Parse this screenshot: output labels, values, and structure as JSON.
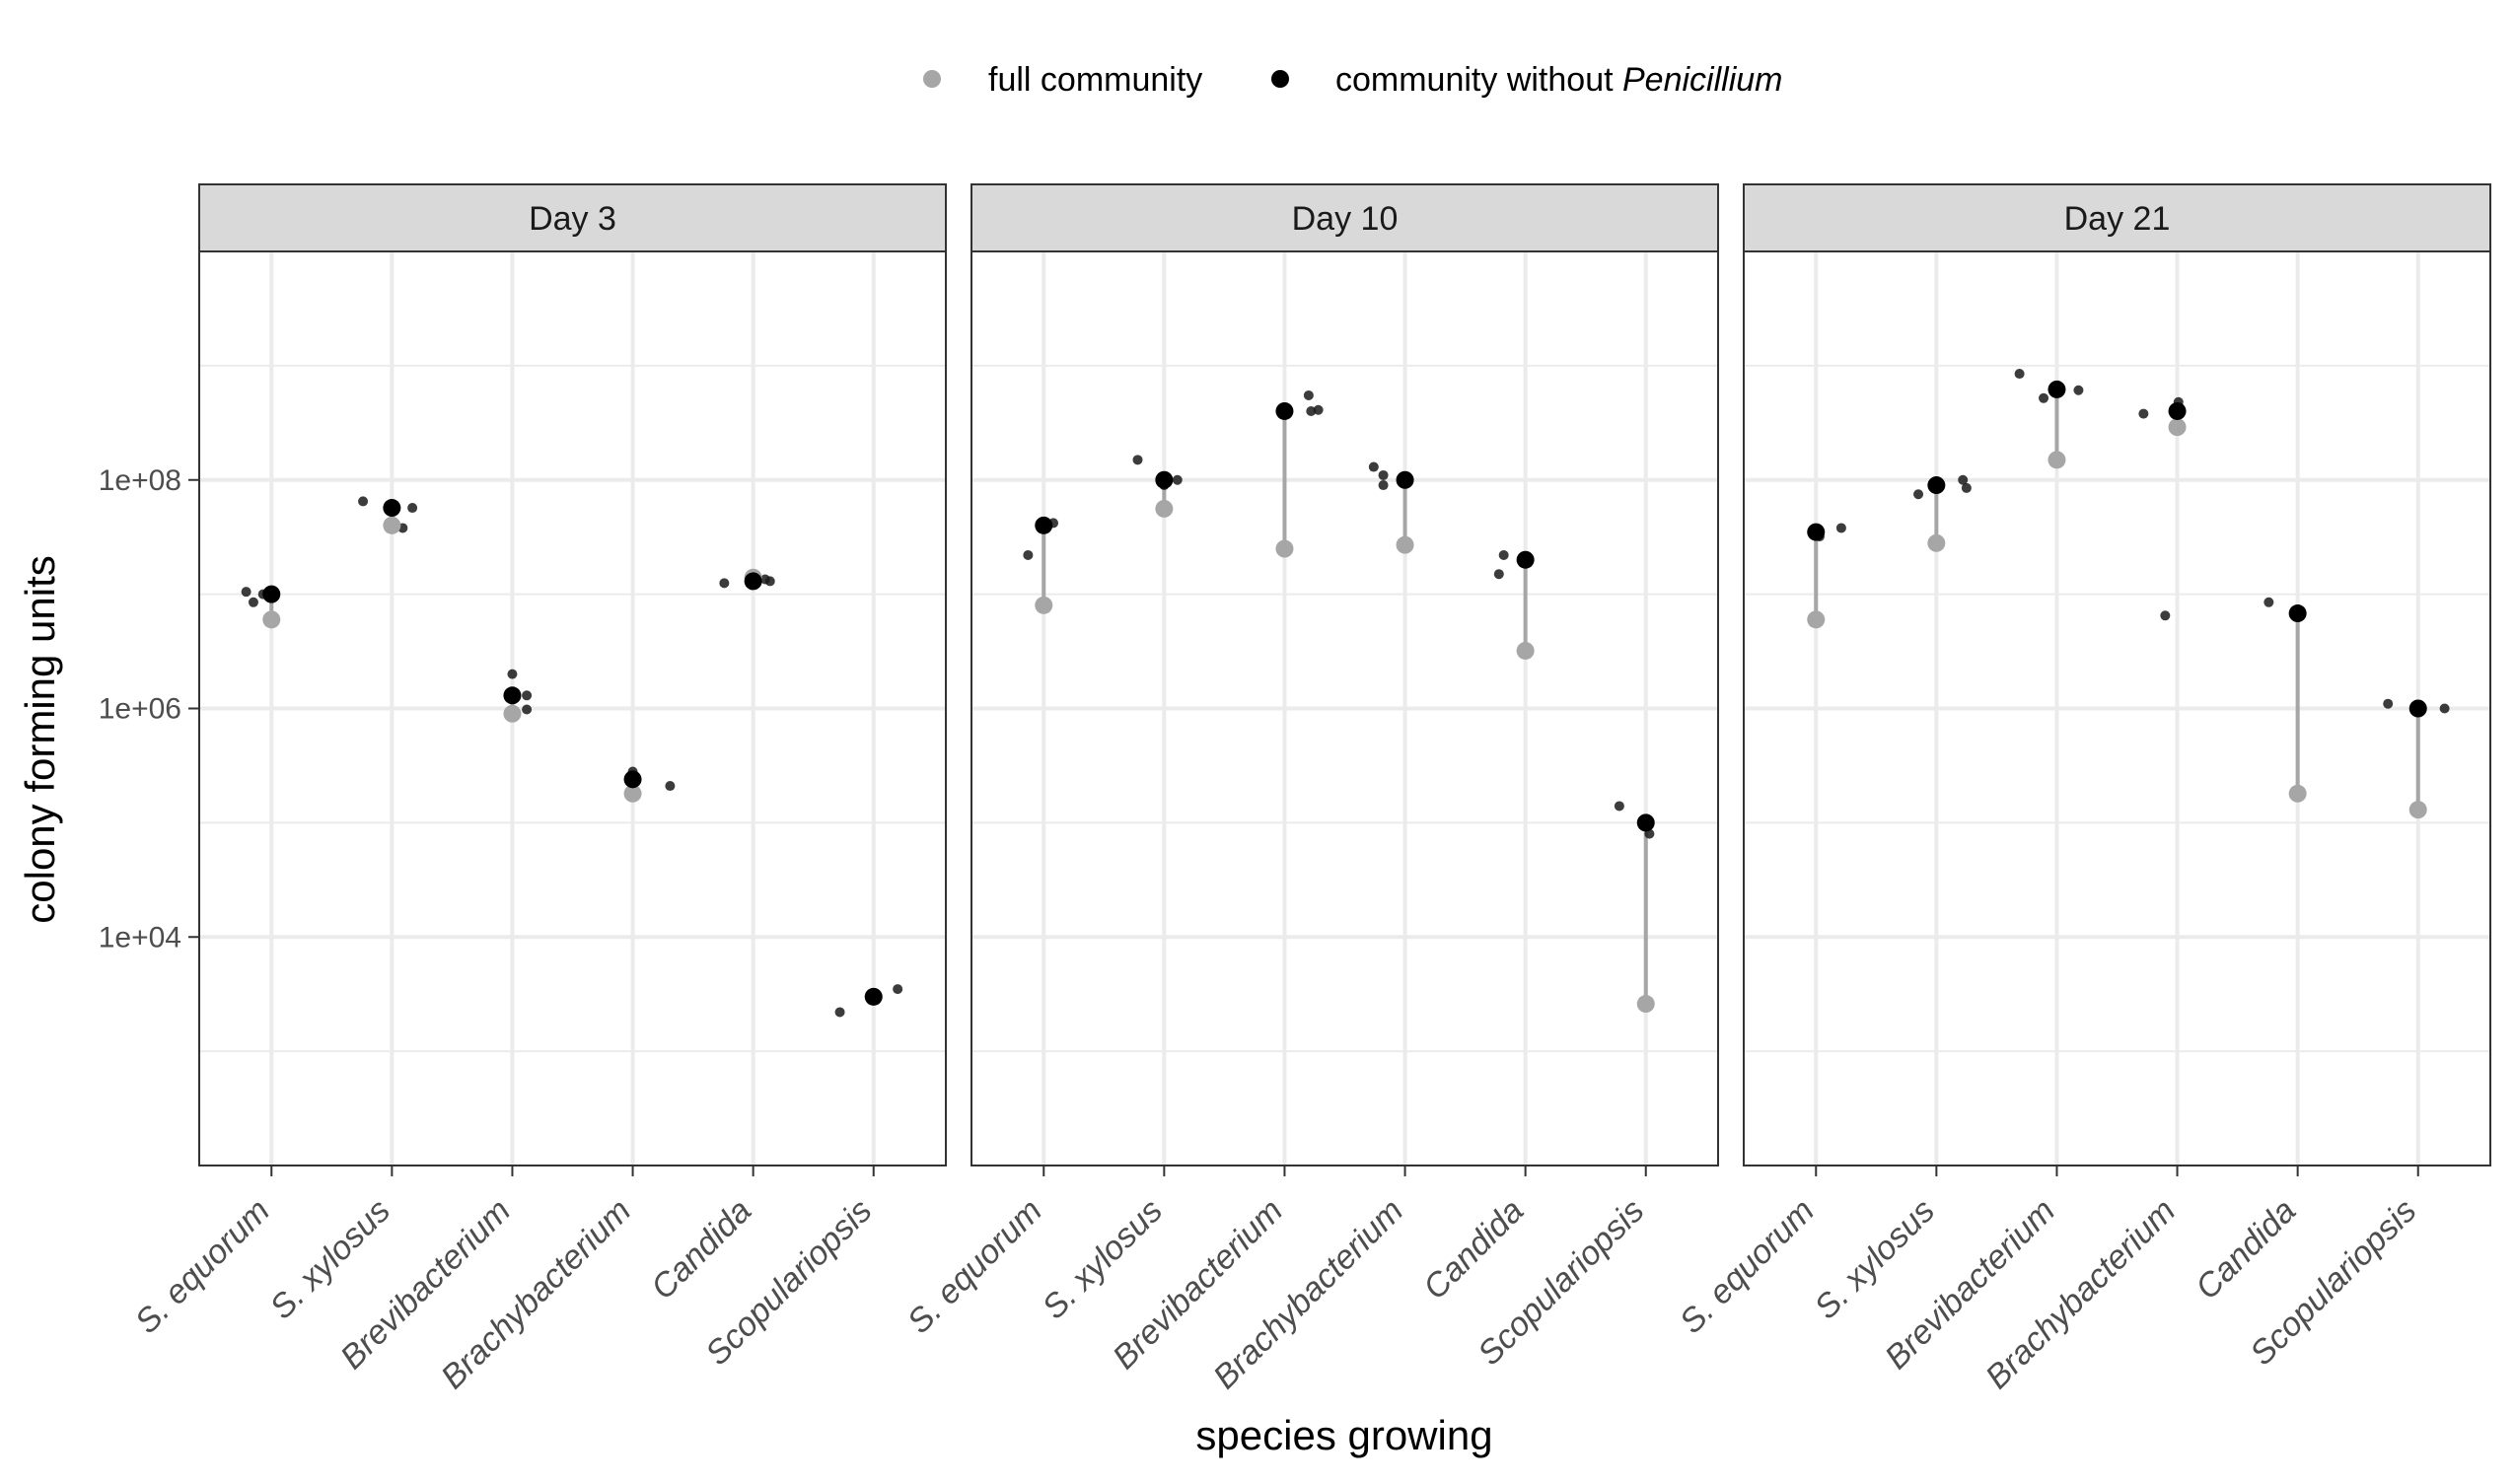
{
  "chart_data": {
    "type": "scatter",
    "xlabel": "species growing",
    "ylabel": "colony forming units",
    "y_scale": "log10",
    "y_range": [
      100.0,
      10000000000.0
    ],
    "y_ticks": [
      {
        "value": 10000,
        "label": "1e+04"
      },
      {
        "value": 1000000,
        "label": "1e+06"
      },
      {
        "value": 100000000,
        "label": "1e+08"
      }
    ],
    "grid": true,
    "legend": {
      "position": "top",
      "items": [
        {
          "key": "full",
          "text": "full community",
          "color": "#a6a6a6"
        },
        {
          "key": "without",
          "text": "community without ",
          "italic_text": "Penicillium",
          "color": "#000000"
        }
      ]
    },
    "categories": [
      "S. equorum",
      "S. xylosus",
      "Brevibacterium",
      "Brachybacterium",
      "Candida",
      "Scopulariopsis"
    ],
    "colors": {
      "full": "#a6a6a6",
      "without": "#000000",
      "replicate": "#1a1a1a",
      "segment": "#a6a6a6"
    },
    "panels": [
      {
        "strip": "Day 3",
        "full": [
          6000000,
          40000000,
          900000,
          180000,
          14000000,
          3000
        ],
        "without": [
          10000000,
          57000000,
          1300000,
          240000,
          13000000,
          3000
        ],
        "replicates": [
          [
            [
              -0.21,
              10500000
            ],
            [
              -0.15,
              8500000
            ],
            [
              -0.07,
              10000000
            ],
            [
              0.02,
              9500000
            ]
          ],
          [
            [
              -0.24,
              65000000
            ],
            [
              0.09,
              38000000
            ],
            [
              0.17,
              57000000
            ]
          ],
          [
            [
              0,
              2000000
            ],
            [
              0.12,
              1300000
            ],
            [
              0.12,
              980000
            ]
          ],
          [
            [
              0.0,
              280000
            ],
            [
              0.31,
              210000
            ]
          ],
          [
            [
              -0.24,
              12500000
            ],
            [
              0.14,
              13000000
            ],
            [
              0.1,
              13500000
            ]
          ],
          [
            [
              -0.28,
              2200
            ],
            [
              -0.03,
              3100
            ],
            [
              0.2,
              3500
            ]
          ]
        ]
      },
      {
        "strip": "Day 10",
        "full": [
          8000000,
          56000000,
          25000000,
          27000000,
          3200000,
          2600
        ],
        "without": [
          40000000,
          100000000,
          400000000,
          100000000,
          20000000,
          100000
        ],
        "replicates": [
          [
            [
              -0.13,
              22000000
            ],
            [
              0.0,
              40000000
            ],
            [
              0.08,
              42000000
            ]
          ],
          [
            [
              -0.22,
              150000000
            ],
            [
              0.0,
              90000000
            ],
            [
              0.11,
              100000000
            ]
          ],
          [
            [
              0.2,
              550000000
            ],
            [
              0.22,
              400000000
            ],
            [
              0.28,
              410000000
            ]
          ],
          [
            [
              -0.26,
              130000000
            ],
            [
              -0.18,
              90000000
            ],
            [
              -0.18,
              110000000
            ]
          ],
          [
            [
              -0.22,
              15000000
            ],
            [
              -0.18,
              22000000
            ],
            [
              0.0,
              19000000
            ]
          ],
          [
            [
              -0.22,
              140000
            ],
            [
              0.0,
              95000
            ],
            [
              0.03,
              80000
            ]
          ]
        ]
      },
      {
        "strip": "Day 21",
        "full": [
          6000000,
          28000000,
          150000000,
          290000000,
          180000,
          130000
        ],
        "without": [
          35000000,
          90000000,
          620000000,
          400000000,
          6800000,
          1000000
        ],
        "replicates": [
          [
            [
              0.03,
              32000000
            ],
            [
              0.21,
              38000000
            ]
          ],
          [
            [
              -0.15,
              75000000
            ],
            [
              0.22,
              100000000
            ],
            [
              0.25,
              85000000
            ]
          ],
          [
            [
              -0.31,
              850000000
            ],
            [
              -0.11,
              520000000
            ],
            [
              0.18,
              610000000
            ]
          ],
          [
            [
              -0.28,
              380000000
            ],
            [
              -0.1,
              6500000
            ],
            [
              0.01,
              480000000
            ]
          ],
          [
            [
              -0.24,
              8500000
            ],
            [
              0.0,
              6400000
            ]
          ],
          [
            [
              -0.25,
              1100000
            ],
            [
              0.22,
              1000000
            ]
          ]
        ]
      }
    ]
  }
}
